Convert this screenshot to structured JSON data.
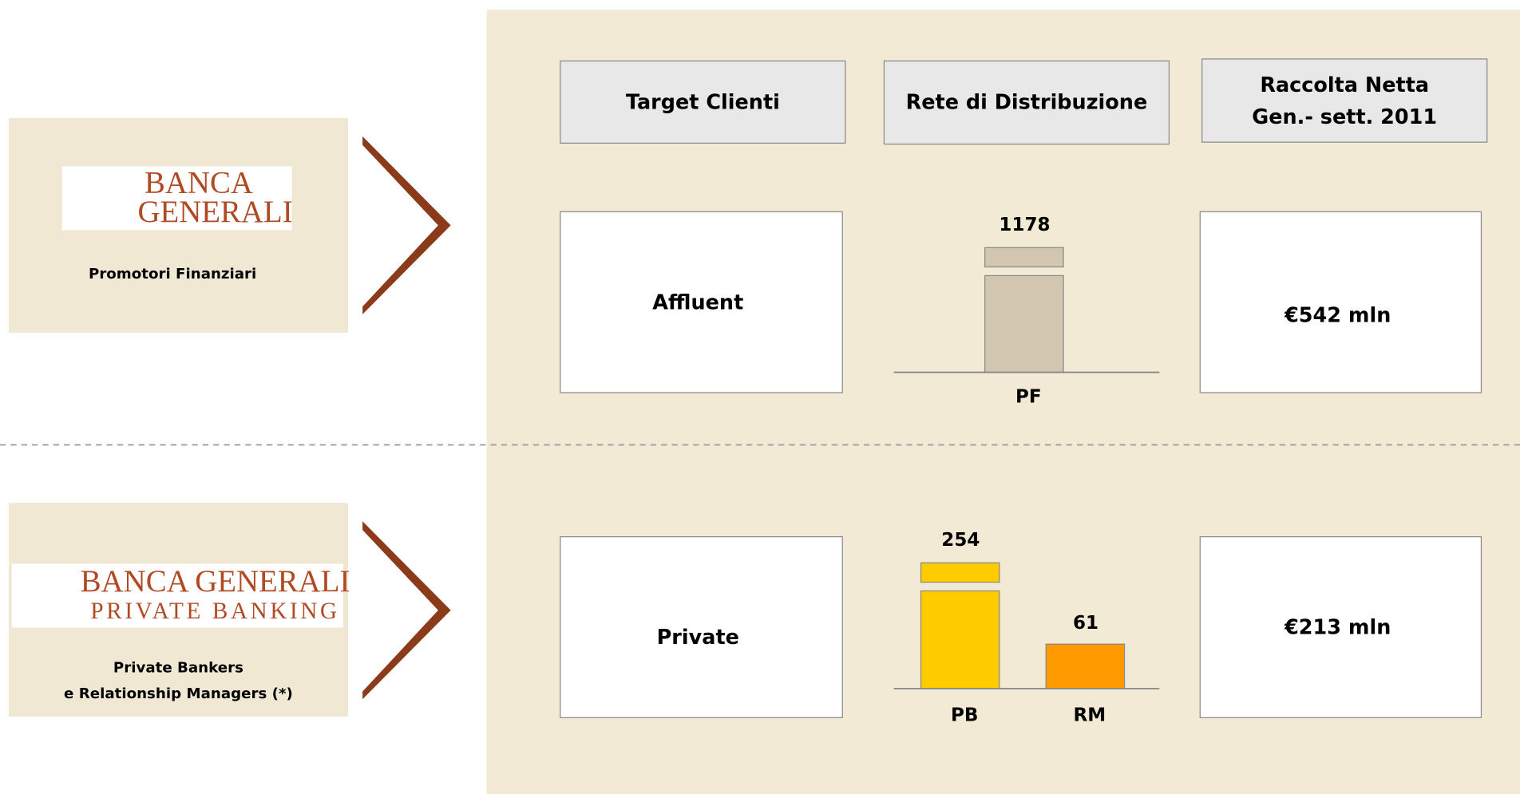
{
  "header": {
    "target": "Target Clienti",
    "network": "Rete di Distribuzione",
    "inflow": [
      "Raccolta Netta",
      "Gen.- sett. 2011"
    ]
  },
  "rows": [
    {
      "logo": [
        "BANCA",
        "GENERALI"
      ],
      "network_label": [
        "Promotori Finanziari"
      ],
      "target": "Affluent",
      "bars": [
        {
          "label": "PF",
          "value": 1178
        }
      ],
      "inflow": "€542 mln"
    },
    {
      "logo": [
        "BANCA GENERALI",
        "PRIVATE BANKING"
      ],
      "network_label": [
        "Private Bankers",
        "e Relationship Managers (*)"
      ],
      "target": "Private",
      "bars": [
        {
          "label": "PB",
          "value": 254
        },
        {
          "label": "RM",
          "value": 61
        }
      ],
      "inflow": "€213 mln"
    }
  ]
}
